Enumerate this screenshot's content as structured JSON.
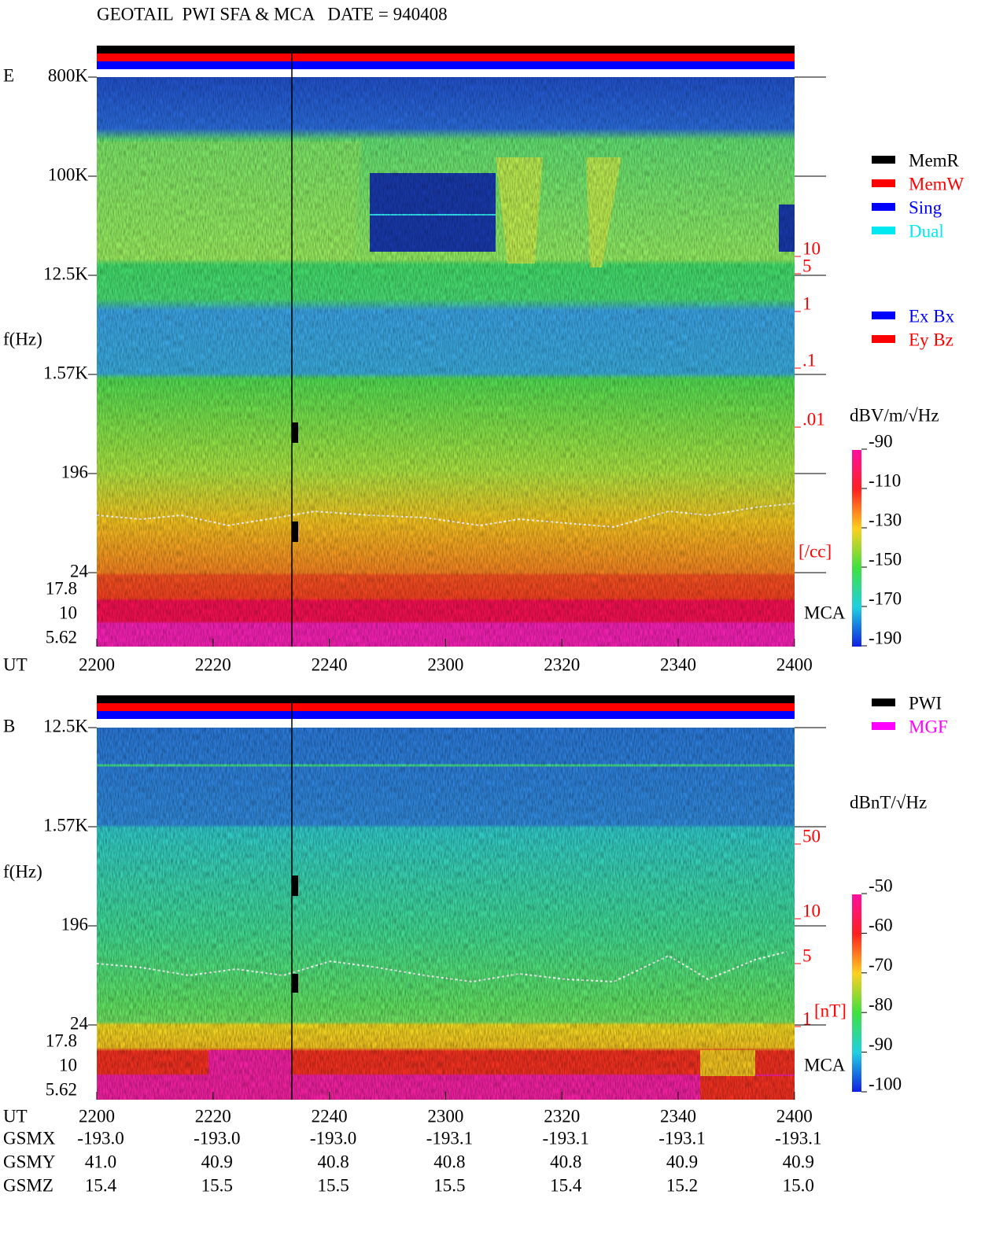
{
  "header": {
    "title": "GEOTAIL  PWI SFA & MCA   DATE = 940408"
  },
  "legend_modes": [
    {
      "label": "MemR",
      "color": "#000000"
    },
    {
      "label": "MemW",
      "color": "#ff0000"
    },
    {
      "label": "Sing",
      "color": "#0000ff"
    },
    {
      "label": "Dual",
      "color": "#00e8f0"
    }
  ],
  "legend_components": [
    {
      "label": "Ex Bx",
      "color": "#0000ff"
    },
    {
      "label": "Ey Bz",
      "color": "#ff0000"
    }
  ],
  "legend_instruments": [
    {
      "label": "PWI",
      "color": "#000000"
    },
    {
      "label": "MGF",
      "color": "#ff00ff"
    }
  ],
  "panels": [
    {
      "label": "E",
      "axis_label": "f(Hz)",
      "freq_ticks": [
        "800K",
        "100K",
        "12.5K",
        "1.57K",
        "196",
        "24"
      ],
      "mca_ticks": [
        "17.8",
        "10",
        "5.62"
      ],
      "mca_label": "MCA",
      "scale_ticks": [
        "10",
        "5",
        "1",
        ".1",
        ".01"
      ],
      "scale_unit": "[/cc]",
      "colorbar_label": "dBV/m/√Hz",
      "colorbar_ticks": [
        "-90",
        "-110",
        "-130",
        "-150",
        "-170",
        "-190"
      ]
    },
    {
      "label": "B",
      "axis_label": "f(Hz)",
      "freq_ticks": [
        "12.5K",
        "1.57K",
        "196",
        "24"
      ],
      "mca_ticks": [
        "17.8",
        "10",
        "5.62"
      ],
      "mca_label": "MCA",
      "scale_ticks": [
        "50",
        "10",
        "5",
        "1"
      ],
      "scale_unit": "[nT]",
      "colorbar_label": "dBnT/√Hz",
      "colorbar_ticks": [
        "-50",
        "-60",
        "-70",
        "-80",
        "-90",
        "-100"
      ]
    }
  ],
  "time_axis": {
    "label": "UT",
    "ticks": [
      "2200",
      "2220",
      "2240",
      "2300",
      "2320",
      "2340",
      "2400"
    ]
  },
  "orbit": {
    "rows": [
      {
        "label": "GSMX",
        "values": [
          "-193.0",
          "-193.0",
          "-193.0",
          "-193.1",
          "-193.1",
          "-193.1",
          "-193.1"
        ]
      },
      {
        "label": "GSMY",
        "values": [
          "41.0",
          "40.9",
          "40.8",
          "40.8",
          "40.8",
          "40.9",
          "40.9"
        ]
      },
      {
        "label": "GSMZ",
        "values": [
          "15.4",
          "15.5",
          "15.5",
          "15.5",
          "15.4",
          "15.2",
          "15.0"
        ]
      }
    ]
  }
}
